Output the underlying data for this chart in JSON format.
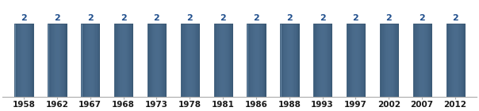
{
  "categories": [
    "1958",
    "1962",
    "1967",
    "1968",
    "1973",
    "1978",
    "1981",
    "1986",
    "1988",
    "1993",
    "1997",
    "2002",
    "2007",
    "2012"
  ],
  "values": [
    2,
    2,
    2,
    2,
    2,
    2,
    2,
    2,
    2,
    2,
    2,
    2,
    2,
    2
  ],
  "bar_color_center": "#4a6b8c",
  "bar_color_edge_light": "#7a9ab8",
  "bar_color_dark": "#2e4e68",
  "ylim": [
    0,
    2.6
  ],
  "value_label_fontsize": 8,
  "value_label_color": "#1f4e8c",
  "tick_fontsize": 7.5,
  "tick_color": "#1a1a1a",
  "background_color": "#ffffff",
  "bar_width": 0.55,
  "spine_color": "#aaaaaa"
}
